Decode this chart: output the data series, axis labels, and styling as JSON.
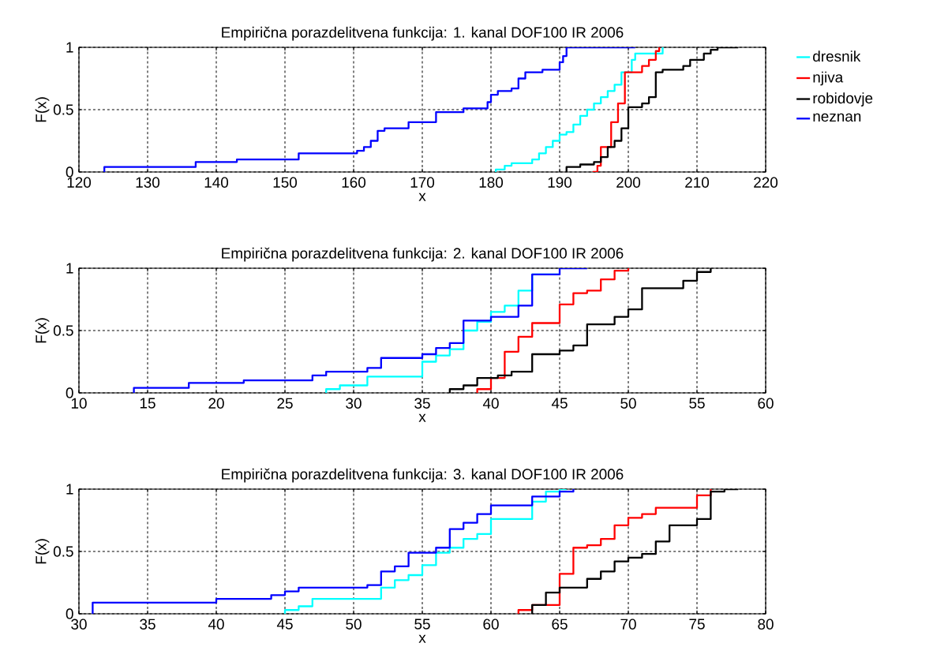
{
  "chart_data": [
    {
      "type": "step",
      "title": "Empirična porazdelitvena funkcija: 1. kanal DOF100 IR 2006",
      "xlabel": "x",
      "ylabel": "F(x)",
      "xlim": [
        120,
        220
      ],
      "ylim": [
        0,
        1
      ],
      "xticks": [
        120,
        130,
        140,
        150,
        160,
        170,
        180,
        190,
        200,
        210,
        220
      ],
      "yticks": [
        0,
        0.5,
        1
      ],
      "grid": true,
      "legend": "right",
      "series": [
        {
          "name": "dresnik",
          "color": "#00ffff",
          "x": [
            180.7,
            180.7,
            182,
            183,
            186,
            187,
            188,
            189,
            190,
            191,
            192,
            193,
            194,
            195,
            196,
            197,
            198,
            199,
            200.5,
            201,
            205
          ],
          "values": [
            0,
            0.02,
            0.05,
            0.07,
            0.1,
            0.15,
            0.2,
            0.25,
            0.3,
            0.32,
            0.38,
            0.45,
            0.5,
            0.55,
            0.6,
            0.65,
            0.7,
            0.8,
            0.9,
            0.95,
            1
          ]
        },
        {
          "name": "njiva",
          "color": "#ff0000",
          "x": [
            194.8,
            195.5,
            196,
            197.5,
            198.5,
            199.5,
            202,
            203,
            204,
            204.5
          ],
          "values": [
            0,
            0.05,
            0.2,
            0.4,
            0.55,
            0.8,
            0.85,
            0.9,
            0.97,
            1
          ]
        },
        {
          "name": "robidovje",
          "color": "#000000",
          "x": [
            191,
            191,
            193,
            195,
            196,
            197,
            198,
            199,
            200,
            202,
            203,
            204,
            205,
            208,
            209,
            211,
            212,
            213,
            216
          ],
          "values": [
            0,
            0.04,
            0.06,
            0.08,
            0.12,
            0.2,
            0.25,
            0.35,
            0.52,
            0.55,
            0.6,
            0.8,
            0.82,
            0.85,
            0.9,
            0.95,
            0.98,
            1,
            1
          ]
        },
        {
          "name": "neznan",
          "color": "#0000ff",
          "x": [
            123.7,
            123.7,
            137,
            143,
            152,
            160.5,
            161.5,
            162.5,
            163.5,
            164.5,
            168,
            172,
            176,
            179.5,
            180,
            181,
            183,
            184,
            185,
            187.5,
            190,
            190.5,
            191,
            201
          ],
          "values": [
            0,
            0.04,
            0.08,
            0.1,
            0.15,
            0.17,
            0.2,
            0.25,
            0.33,
            0.35,
            0.4,
            0.48,
            0.51,
            0.56,
            0.62,
            0.65,
            0.67,
            0.75,
            0.8,
            0.82,
            0.88,
            0.93,
            1,
            1
          ]
        }
      ]
    },
    {
      "type": "step",
      "title": "Empirična porazdelitvena funkcija: 2. kanal DOF100 IR 2006",
      "xlabel": "x",
      "ylabel": "F(x)",
      "xlim": [
        10,
        60
      ],
      "ylim": [
        0,
        1
      ],
      "xticks": [
        10,
        15,
        20,
        25,
        30,
        35,
        40,
        45,
        50,
        55,
        60
      ],
      "yticks": [
        0,
        0.5,
        1
      ],
      "grid": true,
      "series": [
        {
          "color": "#00ffff",
          "x": [
            28,
            28,
            29,
            31,
            35,
            36,
            37,
            38,
            39,
            40,
            41,
            42,
            43,
            45
          ],
          "values": [
            0,
            0.03,
            0.06,
            0.13,
            0.25,
            0.3,
            0.35,
            0.5,
            0.57,
            0.65,
            0.7,
            0.82,
            0.95,
            0.95
          ]
        },
        {
          "color": "#ff0000",
          "x": [
            39,
            39,
            40,
            41,
            42,
            43,
            45,
            46,
            47,
            48,
            49,
            50
          ],
          "values": [
            0,
            0.03,
            0.12,
            0.33,
            0.45,
            0.56,
            0.71,
            0.8,
            0.82,
            0.91,
            0.98,
            1
          ]
        },
        {
          "color": "#000000",
          "x": [
            37,
            37,
            38,
            39,
            40.5,
            41.5,
            43,
            45,
            46,
            47,
            49,
            50,
            51,
            54,
            55,
            56
          ],
          "values": [
            0,
            0.03,
            0.06,
            0.12,
            0.14,
            0.17,
            0.31,
            0.34,
            0.38,
            0.55,
            0.61,
            0.67,
            0.84,
            0.9,
            0.97,
            1
          ]
        },
        {
          "color": "#0000ff",
          "x": [
            14,
            14,
            18,
            22,
            27,
            28,
            31,
            32,
            35,
            36,
            37,
            38,
            40,
            42,
            43,
            45,
            47
          ],
          "values": [
            0,
            0.04,
            0.08,
            0.1,
            0.14,
            0.17,
            0.2,
            0.28,
            0.31,
            0.36,
            0.4,
            0.58,
            0.61,
            0.7,
            0.95,
            1,
            1
          ]
        }
      ]
    },
    {
      "type": "step",
      "title": "Empirična porazdelitvena funkcija: 3. kanal DOF100 IR 2006",
      "xlabel": "x",
      "ylabel": "F(x)",
      "xlim": [
        30,
        80
      ],
      "ylim": [
        0,
        1
      ],
      "xticks": [
        30,
        35,
        40,
        45,
        50,
        55,
        60,
        65,
        70,
        75,
        80
      ],
      "yticks": [
        0,
        0.5,
        1
      ],
      "grid": true,
      "series": [
        {
          "color": "#00ffff",
          "x": [
            45,
            45,
            46,
            47,
            52,
            53,
            54,
            55,
            56,
            57,
            58,
            59,
            60,
            63,
            64,
            65,
            65.5
          ],
          "values": [
            0,
            0.03,
            0.06,
            0.12,
            0.21,
            0.27,
            0.31,
            0.39,
            0.49,
            0.53,
            0.6,
            0.64,
            0.76,
            0.9,
            0.98,
            1,
            1
          ]
        },
        {
          "color": "#ff0000",
          "x": [
            62,
            62,
            63,
            65,
            66,
            67,
            68,
            69,
            70,
            71,
            72,
            75,
            76
          ],
          "values": [
            0,
            0.03,
            0.07,
            0.32,
            0.53,
            0.55,
            0.6,
            0.71,
            0.77,
            0.8,
            0.85,
            0.95,
            1
          ]
        },
        {
          "color": "#000000",
          "x": [
            63,
            63,
            64,
            65,
            67,
            68,
            69,
            70,
            71,
            72,
            73,
            75,
            76,
            77,
            78
          ],
          "values": [
            0,
            0.07,
            0.17,
            0.21,
            0.28,
            0.34,
            0.42,
            0.45,
            0.48,
            0.58,
            0.71,
            0.76,
            0.98,
            1,
            1
          ]
        },
        {
          "color": "#0000ff",
          "x": [
            31,
            31,
            40,
            44,
            45,
            46,
            51,
            52,
            53,
            54,
            56,
            57,
            58,
            59,
            60,
            63,
            65,
            66
          ],
          "values": [
            0,
            0.09,
            0.12,
            0.15,
            0.18,
            0.21,
            0.23,
            0.34,
            0.38,
            0.49,
            0.53,
            0.68,
            0.73,
            0.8,
            0.87,
            0.94,
            0.98,
            1
          ]
        }
      ]
    }
  ]
}
